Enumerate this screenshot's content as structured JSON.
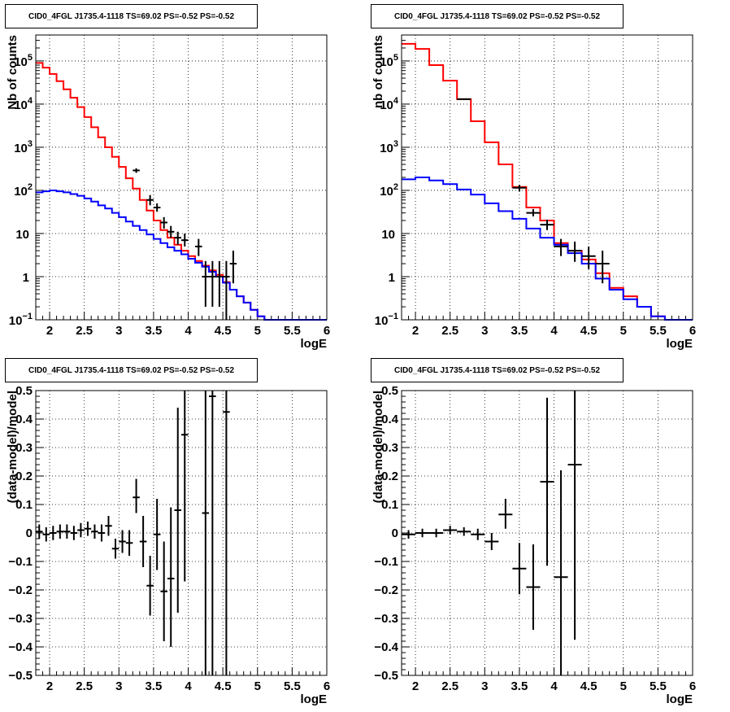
{
  "chart_data": [
    {
      "id": "counts-fine",
      "type": "line",
      "title": "CID0_4FGL J1735.4-1118 TS=69.02 PS=-0.52 PS=-0.52",
      "xlabel": "logE",
      "ylabel": "Nb of counts",
      "xlim": [
        1.8,
        6.0
      ],
      "ylim": [
        0.1,
        400000
      ],
      "yscale": "log",
      "grid": true,
      "x_ticks": [
        "2",
        "2.5",
        "3",
        "3.5",
        "4",
        "4.5",
        "5",
        "5.5",
        "6"
      ],
      "y_ticks": [
        {
          "mant": "10",
          "exp": "−1",
          "value": 0.1
        },
        {
          "mant": "1",
          "exp": "",
          "value": 1
        },
        {
          "mant": "10",
          "exp": "",
          "value": 10
        },
        {
          "mant": "10",
          "exp": "2",
          "value": 100
        },
        {
          "mant": "10",
          "exp": "3",
          "value": 1000
        },
        {
          "mant": "10",
          "exp": "4",
          "value": 10000
        },
        {
          "mant": "10",
          "exp": "5",
          "value": 100000
        }
      ],
      "bin_edges": [
        1.8,
        1.9,
        2.0,
        2.1,
        2.2,
        2.3,
        2.4,
        2.5,
        2.6,
        2.7,
        2.8,
        2.9,
        3.0,
        3.1,
        3.2,
        3.3,
        3.4,
        3.5,
        3.6,
        3.7,
        3.8,
        3.9,
        4.0,
        4.1,
        4.2,
        4.3,
        4.4,
        4.5,
        4.6,
        4.7,
        4.8,
        4.9,
        5.0,
        5.1,
        5.2,
        5.3,
        5.4,
        5.5,
        5.6,
        5.7,
        5.8,
        5.9,
        6.0
      ],
      "series": [
        {
          "name": "",
          "color": "#ff0000",
          "style": "step",
          "values": [
            90000,
            70000,
            50000,
            34000,
            22000,
            14000,
            8500,
            5000,
            2900,
            1700,
            1000,
            600,
            350,
            190,
            110,
            60,
            34,
            20,
            12,
            8,
            5.5,
            4,
            3,
            2.3,
            1.8,
            1.4,
            1.1,
            0.75,
            0.5,
            0.35,
            0.25,
            0.17,
            0.12,
            0.1,
            0.1,
            0.1,
            0.1,
            0.1,
            0.1,
            0.1,
            0.1,
            0.1
          ]
        },
        {
          "name": "",
          "color": "#0000ff",
          "style": "step",
          "values": [
            90,
            95,
            100,
            95,
            90,
            82,
            75,
            65,
            55,
            45,
            38,
            30,
            24,
            19,
            15,
            12,
            9.5,
            7.5,
            6,
            4.8,
            4,
            3.3,
            2.6,
            2.1,
            1.7,
            1.3,
            1.0,
            0.72,
            0.5,
            0.35,
            0.25,
            0.17,
            0.12,
            0.1,
            0.1,
            0.1,
            0.1,
            0.1,
            0.1,
            0.1,
            0.1,
            0.1
          ]
        },
        {
          "name": "",
          "color": "#000000",
          "style": "errorbar",
          "points": [
            {
              "x": 3.25,
              "y": 290,
              "lo": 255,
              "hi": 325
            },
            {
              "x": 3.45,
              "y": 60,
              "lo": 45,
              "hi": 78
            },
            {
              "x": 3.55,
              "y": 40,
              "lo": 32,
              "hi": 50
            },
            {
              "x": 3.65,
              "y": 18,
              "lo": 13,
              "hi": 24
            },
            {
              "x": 3.75,
              "y": 11,
              "lo": 8,
              "hi": 15
            },
            {
              "x": 3.85,
              "y": 8,
              "lo": 5.5,
              "hi": 11
            },
            {
              "x": 3.95,
              "y": 7,
              "lo": 5,
              "hi": 10
            },
            {
              "x": 4.15,
              "y": 5,
              "lo": 3,
              "hi": 7.5
            },
            {
              "x": 4.25,
              "y": 1,
              "lo": 0.2,
              "hi": 2.3
            },
            {
              "x": 4.35,
              "y": 1,
              "lo": 0.2,
              "hi": 2.3
            },
            {
              "x": 4.45,
              "y": 1,
              "lo": 0.2,
              "hi": 2.3
            },
            {
              "x": 4.55,
              "y": 1,
              "lo": 0.1,
              "hi": 2.3
            },
            {
              "x": 4.65,
              "y": 2,
              "lo": 0.7,
              "hi": 4
            }
          ]
        }
      ]
    },
    {
      "id": "counts-coarse",
      "type": "line",
      "title": "CID0_4FGL J1735.4-1118 TS=69.02 PS=-0.52 PS=-0.52",
      "xlabel": "logE",
      "ylabel": "nb of counts",
      "xlim": [
        1.8,
        6.0
      ],
      "ylim": [
        0.1,
        400000
      ],
      "yscale": "log",
      "grid": true,
      "x_ticks": [
        "2",
        "2.5",
        "3",
        "3.5",
        "4",
        "4.5",
        "5",
        "5.5",
        "6"
      ],
      "y_ticks": [
        {
          "mant": "10",
          "exp": "−1",
          "value": 0.1
        },
        {
          "mant": "1",
          "exp": "",
          "value": 1
        },
        {
          "mant": "10",
          "exp": "",
          "value": 10
        },
        {
          "mant": "10",
          "exp": "2",
          "value": 100
        },
        {
          "mant": "10",
          "exp": "3",
          "value": 1000
        },
        {
          "mant": "10",
          "exp": "4",
          "value": 10000
        },
        {
          "mant": "10",
          "exp": "5",
          "value": 100000
        }
      ],
      "bin_edges": [
        1.8,
        2.0,
        2.2,
        2.4,
        2.6,
        2.8,
        3.0,
        3.2,
        3.4,
        3.6,
        3.8,
        4.0,
        4.2,
        4.4,
        4.6,
        4.8,
        5.0,
        5.2,
        5.4,
        5.6,
        5.8,
        6.0
      ],
      "series": [
        {
          "name": "",
          "color": "#ff0000",
          "style": "step",
          "values": [
            250000,
            190000,
            80000,
            35000,
            13000,
            4000,
            1300,
            400,
            120,
            40,
            20,
            6,
            4,
            2.5,
            1.2,
            0.55,
            0.35,
            0.2,
            0.12,
            0.1,
            0.1
          ]
        },
        {
          "name": "",
          "color": "#0000ff",
          "style": "step",
          "values": [
            180,
            200,
            170,
            140,
            105,
            80,
            50,
            33,
            22,
            13,
            8,
            5.5,
            3.5,
            2.0,
            0.9,
            0.5,
            0.3,
            0.2,
            0.12,
            0.1,
            0.1
          ]
        },
        {
          "name": "",
          "color": "#000000",
          "style": "errorbar",
          "points": [
            {
              "x": 2.7,
              "y": 13000,
              "lo": 12500,
              "hi": 13500
            },
            {
              "x": 3.5,
              "y": 115,
              "lo": 95,
              "hi": 135
            },
            {
              "x": 3.7,
              "y": 30,
              "lo": 25,
              "hi": 37
            },
            {
              "x": 3.9,
              "y": 16,
              "lo": 12,
              "hi": 21
            },
            {
              "x": 4.1,
              "y": 5,
              "lo": 3,
              "hi": 7.5
            },
            {
              "x": 4.3,
              "y": 4,
              "lo": 2.2,
              "hi": 6.5
            },
            {
              "x": 4.5,
              "y": 3,
              "lo": 1.5,
              "hi": 5
            },
            {
              "x": 4.7,
              "y": 2,
              "lo": 0.7,
              "hi": 4
            }
          ]
        }
      ]
    },
    {
      "id": "residuals-fine",
      "type": "scatter",
      "title": "CID0_4FGL J1735.4-1118 TS=69.02 PS=-0.52 PS=-0.52",
      "xlabel": "logE",
      "ylabel": "(data-model)/model",
      "xlim": [
        1.8,
        6.0
      ],
      "ylim": [
        -0.5,
        0.5
      ],
      "yscale": "linear",
      "grid": true,
      "x_ticks": [
        "2",
        "2.5",
        "3",
        "3.5",
        "4",
        "4.5",
        "5",
        "5.5",
        "6"
      ],
      "y_ticks": [
        "−0.5",
        "−0.4",
        "−0.3",
        "−0.2",
        "−0.1",
        "0",
        "0.1",
        "0.2",
        "0.3",
        "0.4",
        "0.5"
      ],
      "series": [
        {
          "name": "",
          "color": "#000000",
          "style": "errorbar",
          "points": [
            {
              "x": 1.85,
              "y": 0.005,
              "lo": -0.02,
              "hi": 0.03,
              "xerr": 0.05
            },
            {
              "x": 1.95,
              "y": -0.005,
              "lo": -0.03,
              "hi": 0.02,
              "xerr": 0.05
            },
            {
              "x": 2.05,
              "y": 0.0,
              "lo": -0.025,
              "hi": 0.025,
              "xerr": 0.05
            },
            {
              "x": 2.15,
              "y": 0.005,
              "lo": -0.02,
              "hi": 0.03,
              "xerr": 0.05
            },
            {
              "x": 2.25,
              "y": 0.005,
              "lo": -0.02,
              "hi": 0.03,
              "xerr": 0.05
            },
            {
              "x": 2.35,
              "y": 0.0,
              "lo": -0.025,
              "hi": 0.025,
              "xerr": 0.05
            },
            {
              "x": 2.45,
              "y": 0.01,
              "lo": -0.015,
              "hi": 0.035,
              "xerr": 0.05
            },
            {
              "x": 2.55,
              "y": 0.015,
              "lo": -0.01,
              "hi": 0.04,
              "xerr": 0.05
            },
            {
              "x": 2.65,
              "y": 0.005,
              "lo": -0.02,
              "hi": 0.03,
              "xerr": 0.05
            },
            {
              "x": 2.75,
              "y": 0.0,
              "lo": -0.03,
              "hi": 0.03,
              "xerr": 0.05
            },
            {
              "x": 2.85,
              "y": 0.025,
              "lo": -0.01,
              "hi": 0.06,
              "xerr": 0.05
            },
            {
              "x": 2.95,
              "y": -0.055,
              "lo": -0.09,
              "hi": -0.02,
              "xerr": 0.05
            },
            {
              "x": 3.05,
              "y": -0.03,
              "lo": -0.07,
              "hi": 0.01,
              "xerr": 0.05
            },
            {
              "x": 3.15,
              "y": -0.035,
              "lo": -0.08,
              "hi": 0.01,
              "xerr": 0.05
            },
            {
              "x": 3.25,
              "y": 0.125,
              "lo": 0.07,
              "hi": 0.19,
              "xerr": 0.05
            },
            {
              "x": 3.35,
              "y": -0.03,
              "lo": -0.12,
              "hi": 0.06,
              "xerr": 0.05
            },
            {
              "x": 3.45,
              "y": -0.185,
              "lo": -0.29,
              "hi": -0.08,
              "xerr": 0.05
            },
            {
              "x": 3.55,
              "y": -0.005,
              "lo": -0.13,
              "hi": 0.12,
              "xerr": 0.05
            },
            {
              "x": 3.65,
              "y": -0.205,
              "lo": -0.38,
              "hi": -0.03,
              "xerr": 0.05
            },
            {
              "x": 3.75,
              "y": -0.16,
              "lo": -0.4,
              "hi": 0.09,
              "xerr": 0.05
            },
            {
              "x": 3.85,
              "y": 0.08,
              "lo": -0.28,
              "hi": 0.44,
              "xerr": 0.05
            },
            {
              "x": 3.95,
              "y": 0.345,
              "lo": -0.17,
              "hi": 0.5,
              "xerr": 0.05
            },
            {
              "x": 4.25,
              "y": 0.07,
              "lo": -0.5,
              "hi": 0.5,
              "xerr": 0.05
            },
            {
              "x": 4.35,
              "y": 0.48,
              "lo": -0.5,
              "hi": 0.5,
              "xerr": 0.05
            },
            {
              "x": 4.55,
              "y": 0.425,
              "lo": -0.5,
              "hi": 0.5,
              "xerr": 0.05
            }
          ]
        }
      ]
    },
    {
      "id": "residuals-coarse",
      "type": "scatter",
      "title": "CID0_4FGL J1735.4-1118 TS=69.02 PS=-0.52 PS=-0.52",
      "xlabel": "logE",
      "ylabel": "(data-model)/model",
      "xlim": [
        1.8,
        6.0
      ],
      "ylim": [
        -0.5,
        0.5
      ],
      "yscale": "linear",
      "grid": true,
      "x_ticks": [
        "2",
        "2.5",
        "3",
        "3.5",
        "4",
        "4.5",
        "5",
        "5.5",
        "6"
      ],
      "y_ticks": [
        "−0.5",
        "−0.4",
        "−0.3",
        "−0.2",
        "−0.1",
        "0",
        "0.1",
        "0.2",
        "0.3",
        "0.4",
        "0.5"
      ],
      "series": [
        {
          "name": "",
          "color": "#000000",
          "style": "errorbar",
          "points": [
            {
              "x": 1.9,
              "y": -0.005,
              "lo": -0.02,
              "hi": 0.01,
              "xerr": 0.1
            },
            {
              "x": 2.1,
              "y": 0.0,
              "lo": -0.015,
              "hi": 0.015,
              "xerr": 0.1
            },
            {
              "x": 2.3,
              "y": 0.0,
              "lo": -0.015,
              "hi": 0.015,
              "xerr": 0.1
            },
            {
              "x": 2.5,
              "y": 0.01,
              "lo": -0.005,
              "hi": 0.025,
              "xerr": 0.1
            },
            {
              "x": 2.7,
              "y": 0.005,
              "lo": -0.01,
              "hi": 0.02,
              "xerr": 0.1
            },
            {
              "x": 2.9,
              "y": -0.005,
              "lo": -0.025,
              "hi": 0.015,
              "xerr": 0.1
            },
            {
              "x": 3.1,
              "y": -0.03,
              "lo": -0.06,
              "hi": 0.0,
              "xerr": 0.1
            },
            {
              "x": 3.3,
              "y": 0.065,
              "lo": 0.015,
              "hi": 0.12,
              "xerr": 0.1
            },
            {
              "x": 3.5,
              "y": -0.125,
              "lo": -0.215,
              "hi": -0.035,
              "xerr": 0.1
            },
            {
              "x": 3.7,
              "y": -0.19,
              "lo": -0.34,
              "hi": -0.04,
              "xerr": 0.1
            },
            {
              "x": 3.9,
              "y": 0.18,
              "lo": -0.115,
              "hi": 0.475,
              "xerr": 0.1
            },
            {
              "x": 4.1,
              "y": -0.155,
              "lo": -0.5,
              "hi": 0.22,
              "xerr": 0.1
            },
            {
              "x": 4.3,
              "y": 0.24,
              "lo": -0.375,
              "hi": 0.5,
              "xerr": 0.1
            }
          ]
        }
      ]
    }
  ]
}
